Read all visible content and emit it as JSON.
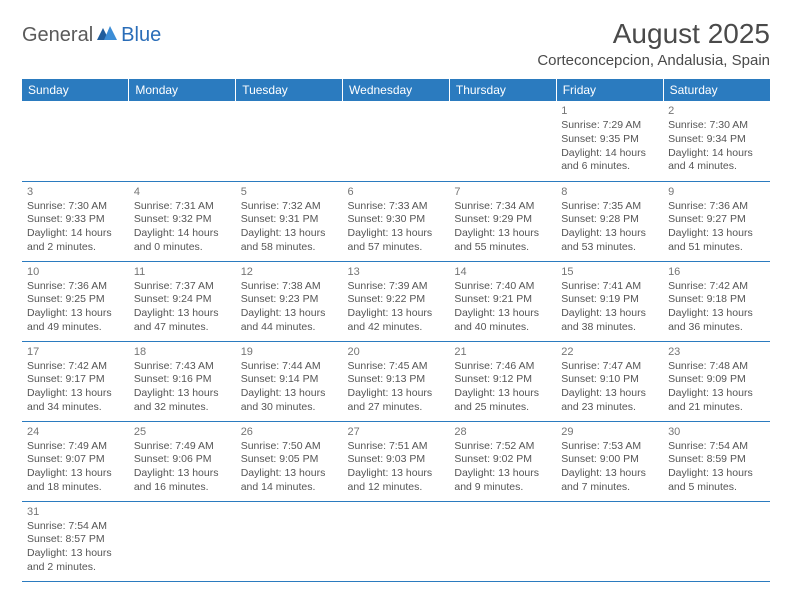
{
  "logo": {
    "text1": "General",
    "text2": "Blue"
  },
  "title": "August 2025",
  "location": "Corteconcepcion, Andalusia, Spain",
  "dayHeaders": [
    "Sunday",
    "Monday",
    "Tuesday",
    "Wednesday",
    "Thursday",
    "Friday",
    "Saturday"
  ],
  "colors": {
    "headerBg": "#2b7bbf",
    "headerText": "#ffffff",
    "border": "#2b7bbf",
    "logoBlue": "#2a6db8",
    "textGray": "#555555"
  },
  "weeks": [
    [
      null,
      null,
      null,
      null,
      null,
      {
        "d": "1",
        "sr": "Sunrise: 7:29 AM",
        "ss": "Sunset: 9:35 PM",
        "dl1": "Daylight: 14 hours",
        "dl2": "and 6 minutes."
      },
      {
        "d": "2",
        "sr": "Sunrise: 7:30 AM",
        "ss": "Sunset: 9:34 PM",
        "dl1": "Daylight: 14 hours",
        "dl2": "and 4 minutes."
      }
    ],
    [
      {
        "d": "3",
        "sr": "Sunrise: 7:30 AM",
        "ss": "Sunset: 9:33 PM",
        "dl1": "Daylight: 14 hours",
        "dl2": "and 2 minutes."
      },
      {
        "d": "4",
        "sr": "Sunrise: 7:31 AM",
        "ss": "Sunset: 9:32 PM",
        "dl1": "Daylight: 14 hours",
        "dl2": "and 0 minutes."
      },
      {
        "d": "5",
        "sr": "Sunrise: 7:32 AM",
        "ss": "Sunset: 9:31 PM",
        "dl1": "Daylight: 13 hours",
        "dl2": "and 58 minutes."
      },
      {
        "d": "6",
        "sr": "Sunrise: 7:33 AM",
        "ss": "Sunset: 9:30 PM",
        "dl1": "Daylight: 13 hours",
        "dl2": "and 57 minutes."
      },
      {
        "d": "7",
        "sr": "Sunrise: 7:34 AM",
        "ss": "Sunset: 9:29 PM",
        "dl1": "Daylight: 13 hours",
        "dl2": "and 55 minutes."
      },
      {
        "d": "8",
        "sr": "Sunrise: 7:35 AM",
        "ss": "Sunset: 9:28 PM",
        "dl1": "Daylight: 13 hours",
        "dl2": "and 53 minutes."
      },
      {
        "d": "9",
        "sr": "Sunrise: 7:36 AM",
        "ss": "Sunset: 9:27 PM",
        "dl1": "Daylight: 13 hours",
        "dl2": "and 51 minutes."
      }
    ],
    [
      {
        "d": "10",
        "sr": "Sunrise: 7:36 AM",
        "ss": "Sunset: 9:25 PM",
        "dl1": "Daylight: 13 hours",
        "dl2": "and 49 minutes."
      },
      {
        "d": "11",
        "sr": "Sunrise: 7:37 AM",
        "ss": "Sunset: 9:24 PM",
        "dl1": "Daylight: 13 hours",
        "dl2": "and 47 minutes."
      },
      {
        "d": "12",
        "sr": "Sunrise: 7:38 AM",
        "ss": "Sunset: 9:23 PM",
        "dl1": "Daylight: 13 hours",
        "dl2": "and 44 minutes."
      },
      {
        "d": "13",
        "sr": "Sunrise: 7:39 AM",
        "ss": "Sunset: 9:22 PM",
        "dl1": "Daylight: 13 hours",
        "dl2": "and 42 minutes."
      },
      {
        "d": "14",
        "sr": "Sunrise: 7:40 AM",
        "ss": "Sunset: 9:21 PM",
        "dl1": "Daylight: 13 hours",
        "dl2": "and 40 minutes."
      },
      {
        "d": "15",
        "sr": "Sunrise: 7:41 AM",
        "ss": "Sunset: 9:19 PM",
        "dl1": "Daylight: 13 hours",
        "dl2": "and 38 minutes."
      },
      {
        "d": "16",
        "sr": "Sunrise: 7:42 AM",
        "ss": "Sunset: 9:18 PM",
        "dl1": "Daylight: 13 hours",
        "dl2": "and 36 minutes."
      }
    ],
    [
      {
        "d": "17",
        "sr": "Sunrise: 7:42 AM",
        "ss": "Sunset: 9:17 PM",
        "dl1": "Daylight: 13 hours",
        "dl2": "and 34 minutes."
      },
      {
        "d": "18",
        "sr": "Sunrise: 7:43 AM",
        "ss": "Sunset: 9:16 PM",
        "dl1": "Daylight: 13 hours",
        "dl2": "and 32 minutes."
      },
      {
        "d": "19",
        "sr": "Sunrise: 7:44 AM",
        "ss": "Sunset: 9:14 PM",
        "dl1": "Daylight: 13 hours",
        "dl2": "and 30 minutes."
      },
      {
        "d": "20",
        "sr": "Sunrise: 7:45 AM",
        "ss": "Sunset: 9:13 PM",
        "dl1": "Daylight: 13 hours",
        "dl2": "and 27 minutes."
      },
      {
        "d": "21",
        "sr": "Sunrise: 7:46 AM",
        "ss": "Sunset: 9:12 PM",
        "dl1": "Daylight: 13 hours",
        "dl2": "and 25 minutes."
      },
      {
        "d": "22",
        "sr": "Sunrise: 7:47 AM",
        "ss": "Sunset: 9:10 PM",
        "dl1": "Daylight: 13 hours",
        "dl2": "and 23 minutes."
      },
      {
        "d": "23",
        "sr": "Sunrise: 7:48 AM",
        "ss": "Sunset: 9:09 PM",
        "dl1": "Daylight: 13 hours",
        "dl2": "and 21 minutes."
      }
    ],
    [
      {
        "d": "24",
        "sr": "Sunrise: 7:49 AM",
        "ss": "Sunset: 9:07 PM",
        "dl1": "Daylight: 13 hours",
        "dl2": "and 18 minutes."
      },
      {
        "d": "25",
        "sr": "Sunrise: 7:49 AM",
        "ss": "Sunset: 9:06 PM",
        "dl1": "Daylight: 13 hours",
        "dl2": "and 16 minutes."
      },
      {
        "d": "26",
        "sr": "Sunrise: 7:50 AM",
        "ss": "Sunset: 9:05 PM",
        "dl1": "Daylight: 13 hours",
        "dl2": "and 14 minutes."
      },
      {
        "d": "27",
        "sr": "Sunrise: 7:51 AM",
        "ss": "Sunset: 9:03 PM",
        "dl1": "Daylight: 13 hours",
        "dl2": "and 12 minutes."
      },
      {
        "d": "28",
        "sr": "Sunrise: 7:52 AM",
        "ss": "Sunset: 9:02 PM",
        "dl1": "Daylight: 13 hours",
        "dl2": "and 9 minutes."
      },
      {
        "d": "29",
        "sr": "Sunrise: 7:53 AM",
        "ss": "Sunset: 9:00 PM",
        "dl1": "Daylight: 13 hours",
        "dl2": "and 7 minutes."
      },
      {
        "d": "30",
        "sr": "Sunrise: 7:54 AM",
        "ss": "Sunset: 8:59 PM",
        "dl1": "Daylight: 13 hours",
        "dl2": "and 5 minutes."
      }
    ],
    [
      {
        "d": "31",
        "sr": "Sunrise: 7:54 AM",
        "ss": "Sunset: 8:57 PM",
        "dl1": "Daylight: 13 hours",
        "dl2": "and 2 minutes."
      },
      null,
      null,
      null,
      null,
      null,
      null
    ]
  ]
}
